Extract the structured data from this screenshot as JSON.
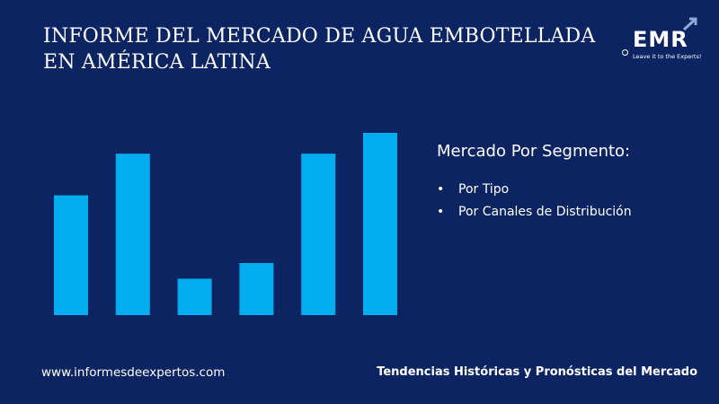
{
  "header": {
    "title": "INFORME DEL MERCADO DE AGUA EMBOTELLADA EN AMÉRICA LATINA"
  },
  "logo": {
    "text": "EMR",
    "tagline": "Leave it to the Experts!",
    "icon": "arrow-up-right-icon"
  },
  "panel": {
    "heading": "Mercado Por Segmento:",
    "items": [
      "Por Tipo",
      "Por Canales de Distribución"
    ]
  },
  "footer": {
    "website": "www.informesdeexpertos.com",
    "tagline": "Tendencias Históricas y Pronósticas del Mercado"
  },
  "colors": {
    "background": "#0c2461",
    "bar": "#00aeef",
    "text": "#ffffff"
  },
  "chart_data": {
    "type": "bar",
    "categories": [
      "",
      "",
      "",
      "",
      "",
      ""
    ],
    "values": [
      46,
      62,
      14,
      20,
      62,
      70
    ],
    "ylim": [
      0,
      70
    ],
    "grid": false,
    "legend": "none"
  }
}
